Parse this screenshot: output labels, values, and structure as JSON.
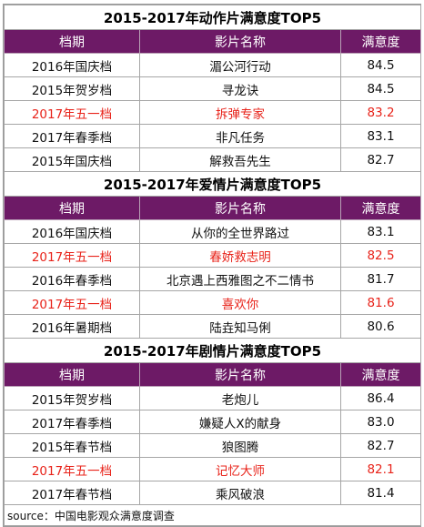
{
  "colors": {
    "header_bg": "#6d1a66",
    "header_text": "#ffffff",
    "highlight_text": "#e8231a"
  },
  "sections": [
    {
      "title": "2015-2017年动作片满意度TOP5",
      "headers": [
        "档期",
        "影片名称",
        "满意度"
      ],
      "rows": [
        {
          "period": "2016年国庆档",
          "film": "湄公河行动",
          "score": "84.5",
          "highlight": false
        },
        {
          "period": "2015年贺岁档",
          "film": "寻龙诀",
          "score": "84.5",
          "highlight": false
        },
        {
          "period": "2017年五一档",
          "film": "拆弹专家",
          "score": "83.2",
          "highlight": true
        },
        {
          "period": "2017年春季档",
          "film": "非凡任务",
          "score": "83.1",
          "highlight": false
        },
        {
          "period": "2015年国庆档",
          "film": "解救吾先生",
          "score": "82.7",
          "highlight": false
        }
      ]
    },
    {
      "title": "2015-2017年爱情片满意度TOP5",
      "headers": [
        "档期",
        "影片名称",
        "满意度"
      ],
      "rows": [
        {
          "period": "2016年国庆档",
          "film": "从你的全世界路过",
          "score": "83.1",
          "highlight": false
        },
        {
          "period": "2017年五一档",
          "film": "春娇救志明",
          "score": "82.5",
          "highlight": true
        },
        {
          "period": "2016年春季档",
          "film": "北京遇上西雅图之不二情书",
          "score": "81.7",
          "highlight": false
        },
        {
          "period": "2017年五一档",
          "film": "喜欢你",
          "score": "81.6",
          "highlight": true
        },
        {
          "period": "2016年暑期档",
          "film": "陆垚知马俐",
          "score": "80.6",
          "highlight": false
        }
      ]
    },
    {
      "title": "2015-2017年剧情片满意度TOP5",
      "headers": [
        "档期",
        "影片名称",
        "满意度"
      ],
      "rows": [
        {
          "period": "2015年贺岁档",
          "film": "老炮儿",
          "score": "86.4",
          "highlight": false
        },
        {
          "period": "2017年春季档",
          "film": "嫌疑人X的献身",
          "score": "83.0",
          "highlight": false
        },
        {
          "period": "2015年春节档",
          "film": "狼图腾",
          "score": "82.7",
          "highlight": false
        },
        {
          "period": "2017年五一档",
          "film": "记忆大师",
          "score": "82.1",
          "highlight": true
        },
        {
          "period": "2017年春节档",
          "film": "乘风破浪",
          "score": "81.4",
          "highlight": false
        }
      ]
    }
  ],
  "source": "source：中国电影观众满意度调查"
}
